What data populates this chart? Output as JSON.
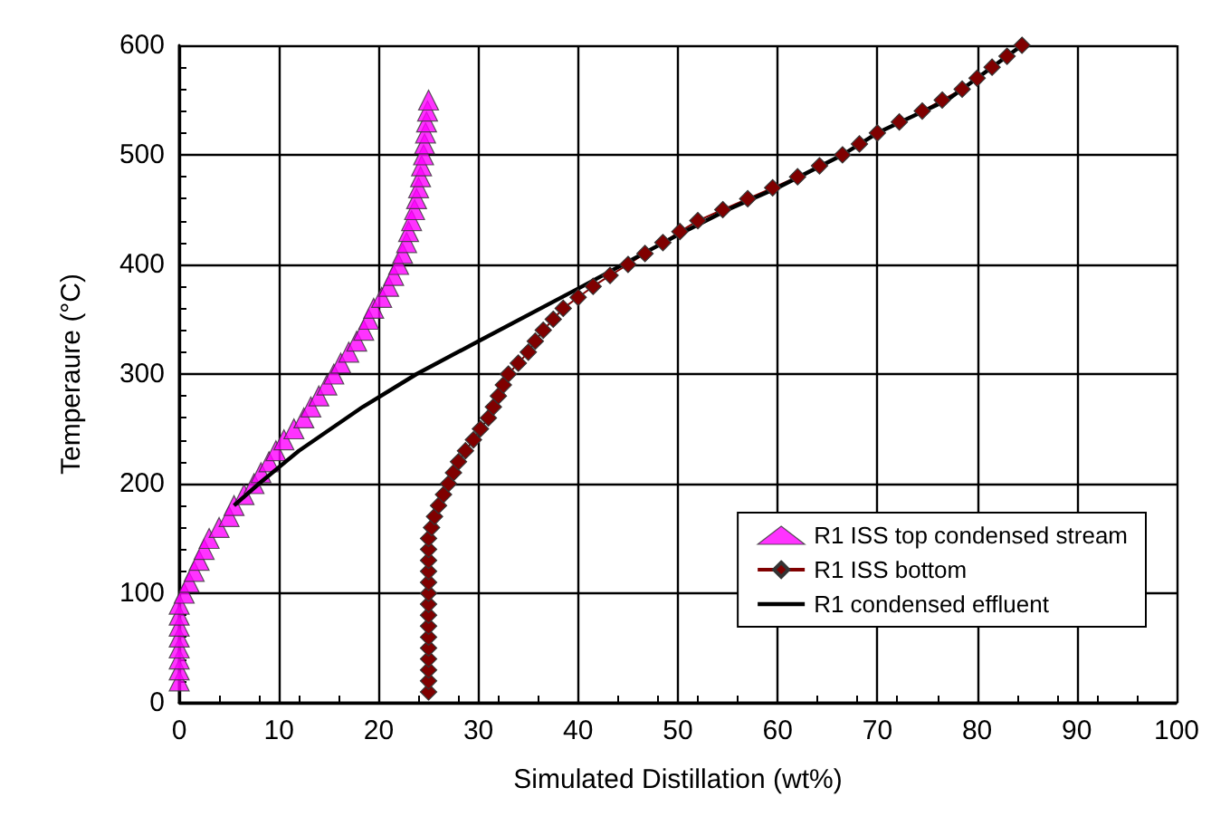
{
  "chart_data": {
    "type": "line",
    "xlabel": "Simulated Distillation (wt%)",
    "ylabel": "Temperaure (°C)",
    "xlim": [
      0,
      100
    ],
    "xticks": [
      0,
      10,
      20,
      30,
      40,
      50,
      60,
      70,
      80,
      90,
      100
    ],
    "ylim": [
      0,
      600
    ],
    "yticks": [
      0,
      100,
      200,
      300,
      400,
      500,
      600
    ],
    "grid": true,
    "legend": "bottom right",
    "series": [
      {
        "name": "R1 ISS top condensed stream",
        "type": "scatter",
        "marker": "triangle",
        "color": "#ff00ff",
        "x": [
          0,
          0,
          0,
          0,
          0,
          0,
          0,
          0,
          0.5,
          1,
          1.5,
          2,
          2.5,
          3,
          4,
          5,
          5.5,
          6.5,
          7.5,
          8.2,
          9,
          9.7,
          10.5,
          11.5,
          12.5,
          13.2,
          14,
          14.8,
          15.5,
          16.2,
          17,
          17.8,
          18.5,
          19,
          19.5,
          20.3,
          21,
          21.5,
          22,
          22.4,
          22.8,
          23,
          23.3,
          23.6,
          23.8,
          24,
          24.2,
          24.3,
          24.5,
          24.6,
          24.7,
          24.8,
          24.9,
          25
        ],
        "values": [
          20,
          30,
          40,
          50,
          60,
          70,
          80,
          90,
          100,
          110,
          120,
          130,
          140,
          150,
          160,
          170,
          180,
          190,
          200,
          210,
          220,
          230,
          240,
          250,
          260,
          270,
          280,
          290,
          300,
          310,
          320,
          330,
          340,
          350,
          360,
          370,
          380,
          390,
          400,
          410,
          420,
          430,
          440,
          450,
          460,
          470,
          480,
          490,
          500,
          510,
          520,
          530,
          540,
          550
        ]
      },
      {
        "name": "R1 ISS bottom",
        "marker": "diamond",
        "color": "#800000",
        "x": [
          25,
          25,
          25,
          25,
          25,
          25,
          25,
          25,
          25,
          25,
          25,
          25,
          25,
          25,
          25,
          25.3,
          25.6,
          26,
          26.5,
          27,
          27.5,
          28,
          28.7,
          29.5,
          30.2,
          31,
          31.5,
          32,
          32.5,
          33,
          34,
          35,
          35.7,
          36.5,
          37.5,
          38.5,
          40,
          41.5,
          43.2,
          45,
          46.7,
          48.5,
          50.2,
          52,
          54.5,
          57,
          59.5,
          62,
          64.2,
          66.5,
          68.2,
          70,
          72.2,
          74.5,
          76.5,
          78.5,
          80,
          81.5,
          83,
          84.5
        ],
        "values": [
          10,
          20,
          30,
          40,
          50,
          60,
          70,
          80,
          90,
          100,
          110,
          120,
          130,
          140,
          150,
          160,
          170,
          180,
          190,
          200,
          210,
          220,
          230,
          240,
          250,
          260,
          270,
          280,
          290,
          300,
          310,
          320,
          330,
          340,
          350,
          360,
          370,
          380,
          390,
          400,
          410,
          420,
          430,
          440,
          450,
          460,
          470,
          480,
          490,
          500,
          510,
          520,
          530,
          540,
          550,
          560,
          570,
          580,
          590,
          600
        ]
      },
      {
        "name": "R1 condensed effluent",
        "marker": "none",
        "color": "#000000",
        "x": [
          5.5,
          8,
          12,
          18.4,
          23.8,
          30,
          40,
          50,
          55,
          60,
          66.5,
          70,
          77,
          84.5
        ],
        "values": [
          180,
          200,
          230,
          270,
          300,
          330,
          378,
          427,
          450,
          470,
          500,
          520,
          550,
          600
        ]
      }
    ]
  }
}
